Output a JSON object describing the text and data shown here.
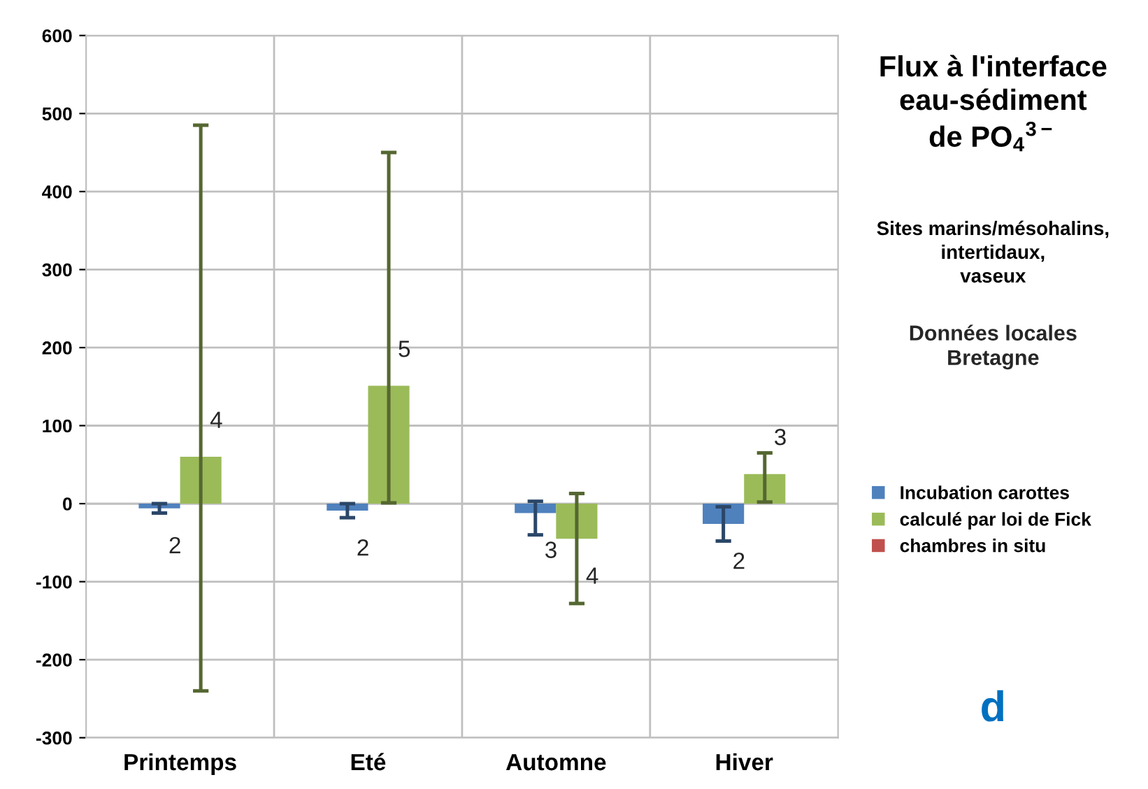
{
  "chart_data": {
    "type": "bar",
    "title": "Flux à l'interface\neau-sédiment\nde PO$_{4}$$^{3−}$",
    "subtitle": "Sites marins/mésohalins,\nintertidaux,\nvaseux",
    "categories": [
      "Printemps",
      "Eté",
      "Automne",
      "Hiver"
    ],
    "series": [
      {
        "name": "Incubation carottes",
        "color": "#4f81bd",
        "values": [
          -6,
          -9,
          -12,
          -26
        ],
        "errors": [
          [
            -12,
            0
          ],
          [
            -18,
            0
          ],
          [
            -40,
            3
          ],
          [
            -48,
            -4
          ]
        ]
      },
      {
        "name": "calculé par loi de Fick",
        "color": "#9bbb59",
        "values": [
          60,
          151,
          -45,
          38
        ],
        "errors": [
          [
            -240,
            485
          ],
          [
            1,
            450
          ],
          [
            -128,
            13
          ],
          [
            2,
            65
          ]
        ]
      },
      {
        "name": "chambres in situ",
        "color": "#c0504d",
        "values": [
          null,
          null,
          null,
          null
        ]
      }
    ],
    "ylim": [
      -300,
      600
    ],
    "yticks": [
      -300,
      -200,
      -100,
      0,
      100,
      200,
      300,
      400,
      500,
      600
    ],
    "grid": true,
    "legend": "right",
    "annotations": [
      {
        "text": "2",
        "x": "Printemps",
        "y": -6
      },
      {
        "text": "4",
        "x": "Printemps",
        "y": 60
      },
      {
        "text": "2",
        "x": "Eté",
        "y": -9
      },
      {
        "text": "5",
        "x": "Eté",
        "y": 151
      },
      {
        "text": "3",
        "x": "Automne",
        "y": -12
      },
      {
        "text": "4",
        "x": "Automne",
        "y": -45
      },
      {
        "text": "2",
        "x": "Hiver",
        "y": -26
      },
      {
        "text": "3",
        "x": "Hiver",
        "y": 38
      },
      "Données locales\nBretagne",
      "d"
    ]
  }
}
